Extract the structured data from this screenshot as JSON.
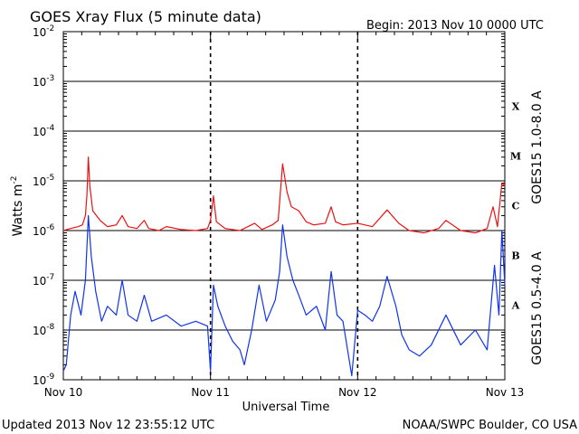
{
  "header": {
    "title": "GOES Xray Flux (5 minute data)",
    "begin": "Begin:  2013 Nov 10 0000 UTC"
  },
  "footer": {
    "updated": "Updated 2013 Nov 12 23:55:12 UTC",
    "source": "NOAA/SWPC Boulder, CO USA"
  },
  "colors": {
    "long": "#ee1111",
    "short": "#1133ee"
  },
  "chart_data": {
    "type": "line",
    "title": "GOES Xray Flux (5 minute data)",
    "xlabel": "Universal Time",
    "ylabel": "Watts m-2",
    "yscale": "log",
    "ylim": [
      1e-09,
      0.01
    ],
    "xlim_days": [
      0,
      3
    ],
    "grid": true,
    "y_ticks": [
      {
        "v": 1e-09,
        "base": "10",
        "exp": "-9"
      },
      {
        "v": 1e-08,
        "base": "10",
        "exp": "-8"
      },
      {
        "v": 1e-07,
        "base": "10",
        "exp": "-7"
      },
      {
        "v": 1e-06,
        "base": "10",
        "exp": "-6"
      },
      {
        "v": 1e-05,
        "base": "10",
        "exp": "-5"
      },
      {
        "v": 0.0001,
        "base": "10",
        "exp": "-4"
      },
      {
        "v": 0.001,
        "base": "10",
        "exp": "-3"
      },
      {
        "v": 0.01,
        "base": "10",
        "exp": "-2"
      }
    ],
    "x_ticks": [
      {
        "d": 0,
        "label": "Nov 10"
      },
      {
        "d": 1,
        "label": "Nov 11"
      },
      {
        "d": 2,
        "label": "Nov 12"
      },
      {
        "d": 3,
        "label": "Nov 13"
      }
    ],
    "flare_classes": [
      {
        "label": "X",
        "v": 0.0001
      },
      {
        "label": "M",
        "v": 1e-05
      },
      {
        "label": "C",
        "v": 1e-06
      },
      {
        "label": "B",
        "v": 1e-07
      },
      {
        "label": "A",
        "v": 1e-08
      }
    ],
    "series": [
      {
        "name": "GOES15 1.0-8.0 A",
        "color": "#ee1111",
        "points": [
          [
            0,
            1e-06
          ],
          [
            0.05,
            1.1e-06
          ],
          [
            0.1,
            1.2e-06
          ],
          [
            0.13,
            1.3e-06
          ],
          [
            0.15,
            2e-06
          ],
          [
            0.16,
            5e-06
          ],
          [
            0.17,
            3e-05
          ],
          [
            0.18,
            8e-06
          ],
          [
            0.2,
            2.5e-06
          ],
          [
            0.25,
            1.6e-06
          ],
          [
            0.3,
            1.2e-06
          ],
          [
            0.36,
            1.3e-06
          ],
          [
            0.4,
            2e-06
          ],
          [
            0.44,
            1.2e-06
          ],
          [
            0.5,
            1.1e-06
          ],
          [
            0.55,
            1.6e-06
          ],
          [
            0.58,
            1.1e-06
          ],
          [
            0.65,
            1e-06
          ],
          [
            0.7,
            1.2e-06
          ],
          [
            0.8,
            1.05e-06
          ],
          [
            0.9,
            1e-06
          ],
          [
            0.98,
            1.1e-06
          ],
          [
            1.0,
            1.6e-06
          ],
          [
            1.02,
            5e-06
          ],
          [
            1.04,
            1.5e-06
          ],
          [
            1.1,
            1.1e-06
          ],
          [
            1.2,
            1e-06
          ],
          [
            1.3,
            1.4e-06
          ],
          [
            1.35,
            1.05e-06
          ],
          [
            1.42,
            1.3e-06
          ],
          [
            1.46,
            1.6e-06
          ],
          [
            1.49,
            2.2e-05
          ],
          [
            1.52,
            6e-06
          ],
          [
            1.55,
            3e-06
          ],
          [
            1.6,
            2.5e-06
          ],
          [
            1.65,
            1.5e-06
          ],
          [
            1.7,
            1.3e-06
          ],
          [
            1.78,
            1.4e-06
          ],
          [
            1.82,
            3e-06
          ],
          [
            1.85,
            1.5e-06
          ],
          [
            1.9,
            1.3e-06
          ],
          [
            2.0,
            1.4e-06
          ],
          [
            2.1,
            1.2e-06
          ],
          [
            2.2,
            2.6e-06
          ],
          [
            2.28,
            1.4e-06
          ],
          [
            2.35,
            1e-06
          ],
          [
            2.45,
            9e-07
          ],
          [
            2.55,
            1.1e-06
          ],
          [
            2.6,
            1.6e-06
          ],
          [
            2.7,
            1e-06
          ],
          [
            2.8,
            9e-07
          ],
          [
            2.88,
            1.1e-06
          ],
          [
            2.92,
            3e-06
          ],
          [
            2.95,
            1.2e-06
          ],
          [
            2.98,
            9e-06
          ],
          [
            3.0,
            8e-06
          ]
        ]
      },
      {
        "name": "GOES15 0.5-4.0 A",
        "color": "#1133ee",
        "points": [
          [
            0,
            1.5e-09
          ],
          [
            0.02,
            2e-09
          ],
          [
            0.05,
            2e-08
          ],
          [
            0.08,
            6e-08
          ],
          [
            0.12,
            2e-08
          ],
          [
            0.15,
            1e-07
          ],
          [
            0.17,
            2e-06
          ],
          [
            0.19,
            3e-07
          ],
          [
            0.22,
            6e-08
          ],
          [
            0.26,
            1.5e-08
          ],
          [
            0.3,
            3e-08
          ],
          [
            0.36,
            2e-08
          ],
          [
            0.4,
            1e-07
          ],
          [
            0.44,
            2e-08
          ],
          [
            0.5,
            1.5e-08
          ],
          [
            0.55,
            5e-08
          ],
          [
            0.6,
            1.5e-08
          ],
          [
            0.7,
            2e-08
          ],
          [
            0.8,
            1.2e-08
          ],
          [
            0.9,
            1.5e-08
          ],
          [
            0.98,
            1.2e-08
          ],
          [
            1.0,
            1.5e-09
          ],
          [
            1.02,
            8e-08
          ],
          [
            1.05,
            3e-08
          ],
          [
            1.1,
            1.2e-08
          ],
          [
            1.15,
            6e-09
          ],
          [
            1.2,
            4e-09
          ],
          [
            1.23,
            2e-09
          ],
          [
            1.28,
            1e-08
          ],
          [
            1.33,
            8e-08
          ],
          [
            1.38,
            1.5e-08
          ],
          [
            1.44,
            4e-08
          ],
          [
            1.47,
            1.5e-07
          ],
          [
            1.49,
            1.3e-06
          ],
          [
            1.52,
            3e-07
          ],
          [
            1.56,
            1e-07
          ],
          [
            1.6,
            5e-08
          ],
          [
            1.65,
            2e-08
          ],
          [
            1.72,
            3e-08
          ],
          [
            1.78,
            1e-08
          ],
          [
            1.82,
            1.5e-07
          ],
          [
            1.86,
            2e-08
          ],
          [
            1.9,
            1.5e-08
          ],
          [
            1.96,
            1.2e-09
          ],
          [
            2.0,
            2.5e-08
          ],
          [
            2.05,
            2e-08
          ],
          [
            2.1,
            1.5e-08
          ],
          [
            2.15,
            3e-08
          ],
          [
            2.2,
            1.2e-07
          ],
          [
            2.26,
            3e-08
          ],
          [
            2.3,
            8e-09
          ],
          [
            2.35,
            4e-09
          ],
          [
            2.42,
            3e-09
          ],
          [
            2.5,
            5e-09
          ],
          [
            2.6,
            2e-08
          ],
          [
            2.7,
            5e-09
          ],
          [
            2.8,
            1e-08
          ],
          [
            2.88,
            4e-09
          ],
          [
            2.93,
            2e-07
          ],
          [
            2.96,
            2e-08
          ],
          [
            2.98,
            1e-06
          ],
          [
            3.0,
            8e-08
          ]
        ]
      }
    ]
  }
}
